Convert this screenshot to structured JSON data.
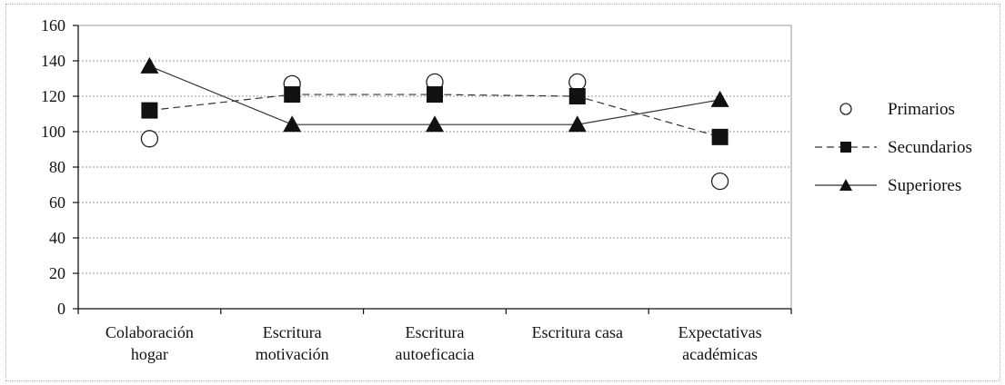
{
  "chart_data": {
    "type": "line",
    "categories": [
      [
        "Colaboración",
        "hogar"
      ],
      [
        "Escritura",
        "motivación"
      ],
      [
        "Escritura",
        "autoeficacia"
      ],
      [
        "Escritura casa"
      ],
      [
        "Expectativas",
        "académicas"
      ]
    ],
    "ylim": [
      0,
      160
    ],
    "yticks": [
      0,
      20,
      40,
      60,
      80,
      100,
      120,
      140,
      160
    ],
    "grid": true,
    "legend_position": "right",
    "series": [
      {
        "name": "Primarios",
        "values": [
          96,
          127,
          128,
          128,
          72
        ],
        "marker": "circle-open",
        "line": "none"
      },
      {
        "name": "Secundarios",
        "values": [
          112,
          121,
          121,
          120,
          97
        ],
        "marker": "square",
        "line": "dashed"
      },
      {
        "name": "Superiores",
        "values": [
          137,
          104,
          104,
          104,
          118
        ],
        "marker": "triangle",
        "line": "solid"
      }
    ]
  }
}
